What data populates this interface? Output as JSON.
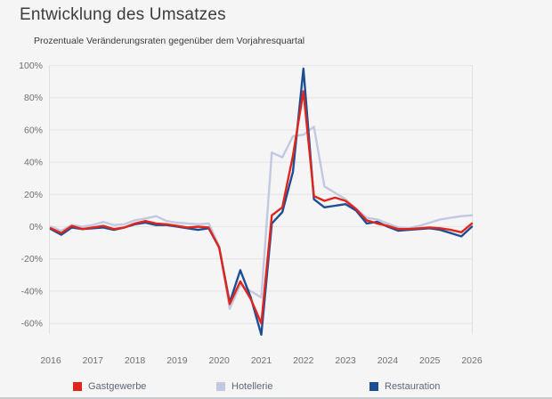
{
  "header": {
    "title": "Entwicklung des Umsatzes",
    "subtitle": "Prozentuale Veränderungsraten gegenüber dem Vorjahresquartal"
  },
  "chart_data": {
    "type": "line",
    "title": "Entwicklung des Umsatzes",
    "subtitle": "Prozentuale Veränderungsraten gegenüber dem Vorjahresquartal",
    "x_unit": "quarter",
    "x_start": "2016 Q1",
    "x_end": "2026 Q1",
    "x_tick_labels": [
      "2016",
      "2017",
      "2018",
      "2019",
      "2020",
      "2021",
      "2022",
      "2023",
      "2024",
      "2025",
      "2026"
    ],
    "y_tick_labels": [
      "100%",
      "80%",
      "60%",
      "40%",
      "20%",
      "0%",
      "-20%",
      "-40%",
      "-60%"
    ],
    "y_gridlines": [
      100,
      80,
      60,
      40,
      20,
      0,
      -20,
      -40,
      -60
    ],
    "ylim": [
      -70,
      105
    ],
    "grid": "horizontal-only",
    "legend_position": "bottom",
    "series": [
      {
        "name": "Gastgewerbe",
        "color": "#e0261c",
        "values": [
          -1,
          -4,
          0.5,
          -1.5,
          -0.5,
          0.5,
          -1.5,
          -0.5,
          2,
          3.5,
          2,
          1.5,
          0.5,
          -0.5,
          0,
          -0.5,
          -13,
          -48,
          -34,
          -45,
          -60,
          7,
          12,
          44,
          84,
          19,
          16,
          18,
          16,
          11,
          4,
          2,
          0.5,
          -1.5,
          -1.5,
          -1,
          -0.5,
          -1,
          -2,
          -3.5,
          2
        ]
      },
      {
        "name": "Hotellerie",
        "color": "#c2c8e0",
        "values": [
          0,
          -2.5,
          1,
          0,
          1,
          3,
          1,
          1.5,
          4,
          5,
          6.5,
          3.5,
          2.5,
          2,
          1.5,
          2,
          -12,
          -51,
          -36,
          -40,
          -44,
          46,
          43,
          56,
          57,
          62,
          25,
          21,
          17,
          11,
          5.5,
          4.5,
          2,
          -0.5,
          -1,
          0.5,
          2.5,
          4.5,
          5.5,
          6.5,
          7
        ]
      },
      {
        "name": "Restauration",
        "color": "#1c4e95",
        "values": [
          -1.5,
          -5,
          -0.5,
          -1.5,
          -1,
          -0.5,
          -2,
          -0.5,
          1.5,
          2.5,
          1,
          1,
          0,
          -1,
          -2,
          -1,
          -13,
          -47,
          -27,
          -44,
          -67,
          2,
          9,
          34,
          98,
          17,
          12,
          13,
          14,
          10,
          2,
          3,
          0,
          -2.5,
          -2,
          -1.5,
          -1,
          -2,
          -4,
          -6,
          0
        ]
      }
    ]
  },
  "axis_colors": {
    "tick_label": "#6f6f6f",
    "gridline": "#e3e3e4",
    "plot_border": "#e0e0e2"
  }
}
